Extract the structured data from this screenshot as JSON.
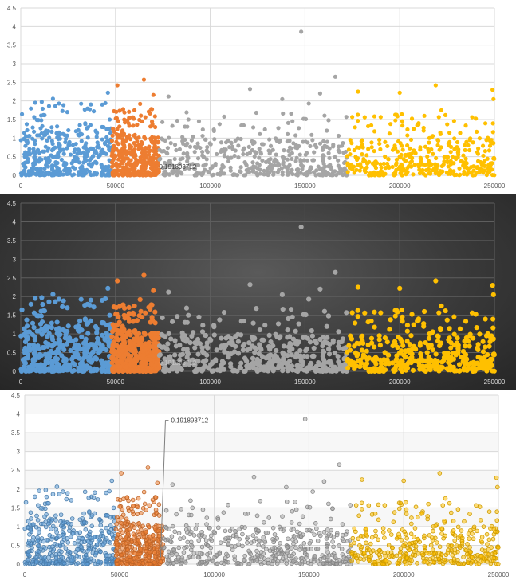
{
  "chart_data": [
    {
      "type": "scatter",
      "theme": "white",
      "title": "",
      "xlim": [
        0,
        250000
      ],
      "ylim": [
        0,
        4.5
      ],
      "x_ticks": [
        "0",
        "50000",
        "100000",
        "150000",
        "200000",
        "250000"
      ],
      "y_ticks": [
        "0",
        "0.5",
        "1",
        "1.5",
        "2",
        "2.5",
        "3",
        "3.5",
        "4",
        "4.5"
      ],
      "grid": true,
      "legend": "none",
      "annotation": {
        "text": "0.191893712",
        "x": 73000,
        "y": 0.19,
        "style": "inline"
      },
      "series": [
        {
          "range": [
            0,
            48000
          ],
          "color": "#5b9bd5",
          "count": 380,
          "dense_max": 1.3,
          "outliers": [
            [
              17000,
              2.06
            ],
            [
              46000,
              2.22
            ],
            [
              43000,
              1.9
            ],
            [
              22000,
              1.73
            ],
            [
              12000,
              1.62
            ]
          ]
        },
        {
          "range": [
            48000,
            73000
          ],
          "color": "#ed7d31",
          "count": 360,
          "dense_max": 1.1,
          "outliers": [
            [
              51000,
              2.42
            ],
            [
              65000,
              2.57
            ],
            [
              70000,
              2.16
            ],
            [
              63000,
              1.92
            ],
            [
              60000,
              1.75
            ]
          ]
        },
        {
          "range": [
            73000,
            172000
          ],
          "color": "#a5a5a5",
          "count": 420,
          "dense_max": 1.0,
          "outliers": [
            [
              148000,
              3.86
            ],
            [
              166000,
              2.65
            ],
            [
              121000,
              2.32
            ],
            [
              78000,
              2.12
            ],
            [
              138000,
              2.05
            ],
            [
              152000,
              1.93
            ],
            [
              158000,
              2.2
            ]
          ]
        },
        {
          "range": [
            172000,
            250000
          ],
          "color": "#ffc000",
          "count": 380,
          "dense_max": 0.95,
          "outliers": [
            [
              249000,
              2.3
            ],
            [
              219000,
              2.42
            ],
            [
              178000,
              2.25
            ],
            [
              200000,
              2.22
            ],
            [
              249500,
              2.05
            ],
            [
              222000,
              1.75
            ],
            [
              213000,
              1.6
            ]
          ]
        }
      ]
    },
    {
      "type": "scatter",
      "theme": "dark",
      "title": "",
      "xlim": [
        0,
        250000
      ],
      "ylim": [
        0,
        4.5
      ],
      "x_ticks": [
        "0",
        "50000",
        "100000",
        "150000",
        "200000",
        "250000"
      ],
      "y_ticks": [
        "0",
        "0.5",
        "1",
        "1.5",
        "2",
        "2.5",
        "3",
        "3.5",
        "4",
        "4.5"
      ],
      "grid": true,
      "legend": "none",
      "annotation": {
        "text": "0.191893712",
        "x": 73000,
        "y": 0.19,
        "style": "faint"
      },
      "series": [
        {
          "range": [
            0,
            48000
          ],
          "color": "#5b9bd5",
          "count": 380,
          "dense_max": 1.3,
          "outliers": [
            [
              17000,
              2.06
            ],
            [
              46000,
              2.22
            ],
            [
              43000,
              1.9
            ],
            [
              22000,
              1.73
            ],
            [
              12000,
              1.62
            ]
          ]
        },
        {
          "range": [
            48000,
            73000
          ],
          "color": "#ed7d31",
          "count": 360,
          "dense_max": 1.1,
          "outliers": [
            [
              51000,
              2.42
            ],
            [
              65000,
              2.57
            ],
            [
              70000,
              2.16
            ],
            [
              63000,
              1.92
            ],
            [
              60000,
              1.75
            ]
          ]
        },
        {
          "range": [
            73000,
            172000
          ],
          "color": "#a5a5a5",
          "count": 420,
          "dense_max": 1.0,
          "outliers": [
            [
              148000,
              3.86
            ],
            [
              166000,
              2.65
            ],
            [
              121000,
              2.32
            ],
            [
              78000,
              2.12
            ],
            [
              138000,
              2.05
            ],
            [
              152000,
              1.93
            ],
            [
              158000,
              2.2
            ]
          ]
        },
        {
          "range": [
            172000,
            250000
          ],
          "color": "#ffc000",
          "count": 380,
          "dense_max": 0.95,
          "outliers": [
            [
              249000,
              2.3
            ],
            [
              219000,
              2.42
            ],
            [
              178000,
              2.25
            ],
            [
              200000,
              2.22
            ],
            [
              249500,
              2.05
            ],
            [
              222000,
              1.75
            ],
            [
              213000,
              1.6
            ]
          ]
        }
      ]
    },
    {
      "type": "scatter",
      "theme": "light-bands",
      "title": "",
      "xlim": [
        0,
        250000
      ],
      "ylim": [
        0,
        4.5
      ],
      "x_ticks": [
        "0",
        "50000",
        "100000",
        "150000",
        "200000",
        "250000"
      ],
      "y_ticks": [
        "0",
        "0.5",
        "1",
        "1.5",
        "2",
        "2.5",
        "3",
        "3.5",
        "4",
        "4.5"
      ],
      "grid": true,
      "legend": "none",
      "annotation": {
        "text": "0.191893712",
        "x": 73000,
        "y": 0.19,
        "style": "callout",
        "label_y": 3.83
      },
      "series": [
        {
          "range": [
            0,
            48000
          ],
          "color": "#5b9bd5",
          "count": 380,
          "dense_max": 1.3,
          "outliers": [
            [
              17000,
              2.06
            ],
            [
              46000,
              2.22
            ],
            [
              43000,
              1.9
            ],
            [
              22000,
              1.73
            ],
            [
              12000,
              1.62
            ]
          ]
        },
        {
          "range": [
            48000,
            73000
          ],
          "color": "#ed7d31",
          "count": 360,
          "dense_max": 1.1,
          "outliers": [
            [
              51000,
              2.42
            ],
            [
              65000,
              2.57
            ],
            [
              70000,
              2.16
            ],
            [
              63000,
              1.92
            ],
            [
              60000,
              1.75
            ]
          ]
        },
        {
          "range": [
            73000,
            172000
          ],
          "color": "#a5a5a5",
          "count": 420,
          "dense_max": 1.0,
          "outliers": [
            [
              148000,
              3.86
            ],
            [
              166000,
              2.65
            ],
            [
              121000,
              2.32
            ],
            [
              78000,
              2.12
            ],
            [
              138000,
              2.05
            ],
            [
              152000,
              1.93
            ],
            [
              158000,
              2.2
            ]
          ]
        },
        {
          "range": [
            172000,
            250000
          ],
          "color": "#ffc000",
          "count": 380,
          "dense_max": 0.95,
          "outliers": [
            [
              249000,
              2.3
            ],
            [
              219000,
              2.42
            ],
            [
              178000,
              2.25
            ],
            [
              200000,
              2.22
            ],
            [
              249500,
              2.05
            ],
            [
              222000,
              1.75
            ],
            [
              213000,
              1.6
            ]
          ]
        }
      ]
    }
  ]
}
